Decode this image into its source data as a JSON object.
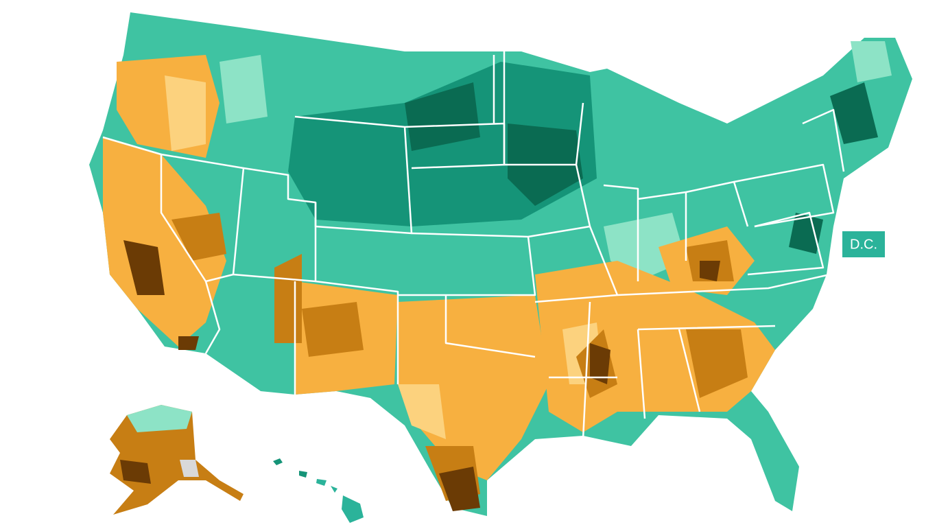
{
  "map": {
    "labels": {
      "dc": "D.C."
    }
  }
}
